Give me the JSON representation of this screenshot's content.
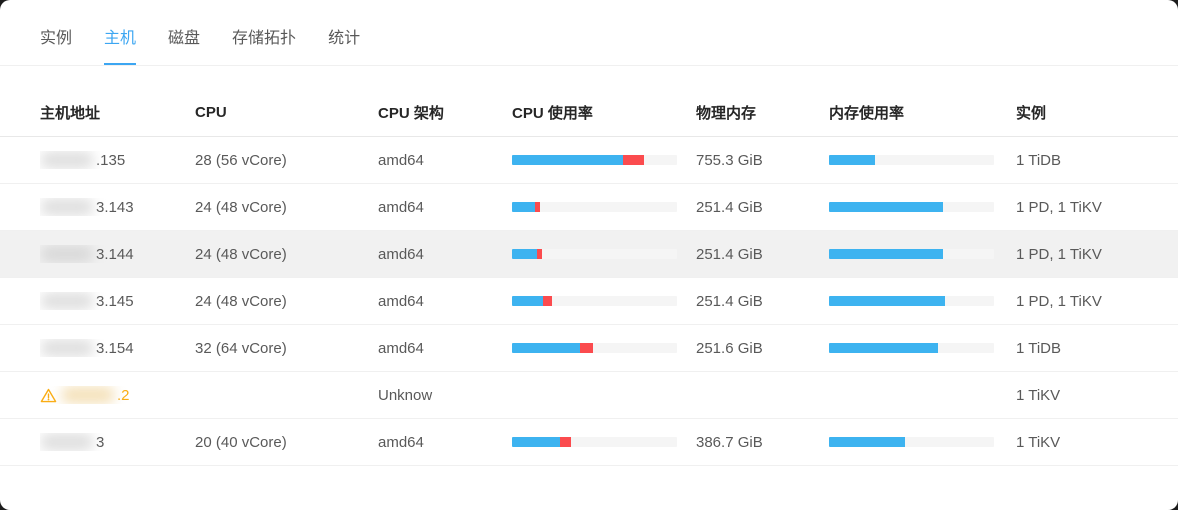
{
  "tabs": [
    {
      "label": "实例",
      "active": false
    },
    {
      "label": "主机",
      "active": true
    },
    {
      "label": "磁盘",
      "active": false
    },
    {
      "label": "存储拓扑",
      "active": false
    },
    {
      "label": "统计",
      "active": false
    }
  ],
  "table": {
    "columns": [
      "主机地址",
      "CPU",
      "CPU 架构",
      "CPU 使用率",
      "物理内存",
      "内存使用率",
      "实例"
    ],
    "rows": [
      {
        "host_suffix": ".135",
        "host_redacted": true,
        "warning": false,
        "cpu": "28 (56 vCore)",
        "arch": "amd64",
        "cpu_usage": {
          "blue_pct": 67,
          "red_pct": 13
        },
        "memory": "755.3 GiB",
        "mem_usage": {
          "blue_pct": 28
        },
        "instances": "1 TiDB",
        "highlighted": false
      },
      {
        "host_suffix": "3.143",
        "host_redacted": true,
        "warning": false,
        "cpu": "24 (48 vCore)",
        "arch": "amd64",
        "cpu_usage": {
          "blue_pct": 14,
          "red_pct": 3
        },
        "memory": "251.4 GiB",
        "mem_usage": {
          "blue_pct": 69
        },
        "instances": "1 PD, 1 TiKV",
        "highlighted": false
      },
      {
        "host_suffix": "3.144",
        "host_redacted": true,
        "warning": false,
        "cpu": "24 (48 vCore)",
        "arch": "amd64",
        "cpu_usage": {
          "blue_pct": 15,
          "red_pct": 3
        },
        "memory": "251.4 GiB",
        "mem_usage": {
          "blue_pct": 69
        },
        "instances": "1 PD, 1 TiKV",
        "highlighted": true
      },
      {
        "host_suffix": "3.145",
        "host_redacted": true,
        "warning": false,
        "cpu": "24 (48 vCore)",
        "arch": "amd64",
        "cpu_usage": {
          "blue_pct": 19,
          "red_pct": 5
        },
        "memory": "251.4 GiB",
        "mem_usage": {
          "blue_pct": 70
        },
        "instances": "1 PD, 1 TiKV",
        "highlighted": false
      },
      {
        "host_suffix": "3.154",
        "host_redacted": true,
        "warning": false,
        "cpu": "32 (64 vCore)",
        "arch": "amd64",
        "cpu_usage": {
          "blue_pct": 41,
          "red_pct": 8
        },
        "memory": "251.6 GiB",
        "mem_usage": {
          "blue_pct": 66
        },
        "instances": "1 TiDB",
        "highlighted": false
      },
      {
        "host_suffix": ".2",
        "host_redacted": true,
        "warning": true,
        "cpu": "",
        "arch": "Unknow",
        "cpu_usage": null,
        "memory": "",
        "mem_usage": null,
        "instances": "1 TiKV",
        "highlighted": false
      },
      {
        "host_suffix": "3",
        "host_redacted": true,
        "warning": false,
        "cpu": "20 (40 vCore)",
        "arch": "amd64",
        "cpu_usage": {
          "blue_pct": 29,
          "red_pct": 7
        },
        "memory": "386.7 GiB",
        "mem_usage": {
          "blue_pct": 46
        },
        "instances": "1 TiKV",
        "highlighted": false
      }
    ]
  },
  "colors": {
    "accent": "#3ca6f2",
    "bar_blue": "#3db3f0",
    "bar_red": "#fb4b4e",
    "warning": "#faad14",
    "highlight_row": "#f1f1f1"
  }
}
